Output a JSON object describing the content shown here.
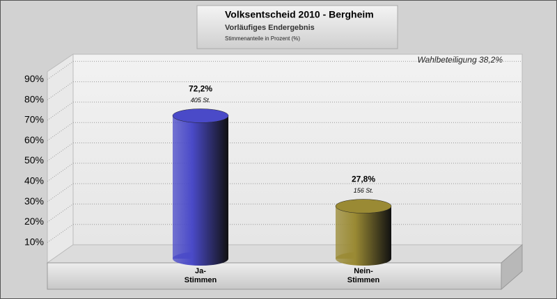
{
  "chart_data": {
    "type": "bar",
    "title": "Volksentscheid 2010 - Bergheim",
    "subtitle": "Vorläufiges Endergebnis",
    "y_label": "Stimmenanteile in Prozent (%)",
    "annotation": "Wahlbeteiligung 38,2%",
    "categories": [
      "Ja-\nStimmen",
      "Nein-\nStimmen"
    ],
    "values": [
      72.2,
      27.8
    ],
    "value_labels": [
      "72,2%",
      "27,8%"
    ],
    "vote_labels": [
      "405 St.",
      "156 St."
    ],
    "colors": [
      "#4a4ac8",
      "#9a8a34"
    ],
    "ylim": [
      0,
      100
    ],
    "yticks": [
      {
        "value": 10,
        "label": "10%"
      },
      {
        "value": 20,
        "label": "20%"
      },
      {
        "value": 30,
        "label": "30%"
      },
      {
        "value": 40,
        "label": "40%"
      },
      {
        "value": 50,
        "label": "50%"
      },
      {
        "value": 60,
        "label": "60%"
      },
      {
        "value": 70,
        "label": "70%"
      },
      {
        "value": 80,
        "label": "80%"
      },
      {
        "value": 90,
        "label": "90%"
      }
    ],
    "grid": true
  }
}
